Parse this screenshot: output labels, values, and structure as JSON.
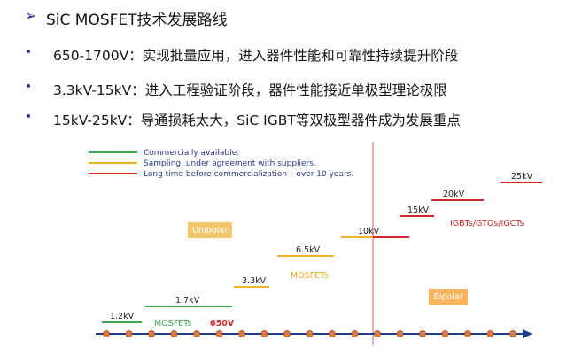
{
  "bullets": {
    "heading": "SiC MOSFET技术发展路线",
    "items": [
      "650-1700V：实现批量应用，进入器件性能和可靠性持续提升阶段",
      "3.3kV-15kV：进入工程验证阶段，器件性能接近单极型理论极限",
      "15kV-25kV：导通损耗太大，SiC IGBT等双极型器件成为发展重点"
    ],
    "marker_icon": "arrow-bullet-icon",
    "dot_icon": "dot-bullet-icon"
  },
  "legend": [
    {
      "label": "Commercially available.",
      "color": "#3aa64a"
    },
    {
      "label": "Sampling, under agreement with suppliers.",
      "color": "#f0b323"
    },
    {
      "label": "Long time before commercialization – over 10 years.",
      "color": "#d42a2a"
    }
  ],
  "regions": {
    "unipolar": "Unipolar",
    "bipolar": "Bipolar",
    "unipolar_color": "#f4c66a",
    "bipolar_color": "#f7b45c"
  },
  "steps": [
    {
      "label": "1.2kV",
      "status": "commercial"
    },
    {
      "label": "1.7kV",
      "status": "commercial"
    },
    {
      "label": "3.3kV",
      "status": "sampling"
    },
    {
      "label": "6.5kV",
      "status": "sampling"
    },
    {
      "label": "10kV",
      "status": "sampling"
    },
    {
      "label": "15kV",
      "status": "future"
    },
    {
      "label": "20kV",
      "status": "future"
    },
    {
      "label": "25kV",
      "status": "future"
    }
  ],
  "annotations": {
    "mosfets_commercial": "MOSFETs",
    "v650": "650V",
    "mosfets_sampling": "MOSFETs",
    "bipolar_devices": "IGBTs/GTOs/IGCTs"
  },
  "colors": {
    "commercial": "#3aa64a",
    "sampling": "#f0b323",
    "future": "#d42a2a",
    "axis": "#1f3a8c",
    "node": "#e07a3a",
    "divider": "#e25a5a"
  }
}
